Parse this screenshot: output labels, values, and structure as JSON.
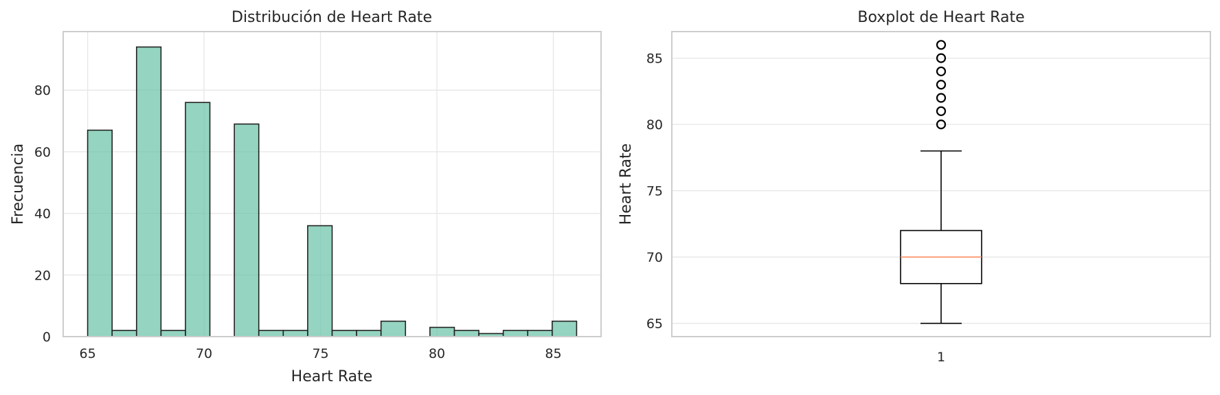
{
  "chart_data": [
    {
      "type": "bar",
      "title": "Distribución de Heart Rate",
      "xlabel": "Heart Rate",
      "ylabel": "Frecuencia",
      "xlim": [
        63.95,
        87.05
      ],
      "ylim": [
        0,
        99
      ],
      "xticks": [
        65,
        70,
        75,
        80,
        85
      ],
      "yticks": [
        0,
        20,
        40,
        60,
        80
      ],
      "grid": true,
      "bar_color": "#66c2a5",
      "edge_color": "#222222",
      "bins": [
        {
          "x0": 65.0,
          "x1": 66.05,
          "count": 67
        },
        {
          "x0": 66.05,
          "x1": 67.1,
          "count": 2
        },
        {
          "x0": 67.1,
          "x1": 68.15,
          "count": 94
        },
        {
          "x0": 68.15,
          "x1": 69.2,
          "count": 2
        },
        {
          "x0": 69.2,
          "x1": 70.25,
          "count": 76
        },
        {
          "x0": 70.25,
          "x1": 71.3,
          "count": 0
        },
        {
          "x0": 71.3,
          "x1": 72.35,
          "count": 69
        },
        {
          "x0": 72.35,
          "x1": 73.4,
          "count": 2
        },
        {
          "x0": 73.4,
          "x1": 74.45,
          "count": 2
        },
        {
          "x0": 74.45,
          "x1": 75.5,
          "count": 36
        },
        {
          "x0": 75.5,
          "x1": 76.55,
          "count": 2
        },
        {
          "x0": 76.55,
          "x1": 77.6,
          "count": 2
        },
        {
          "x0": 77.6,
          "x1": 78.65,
          "count": 5
        },
        {
          "x0": 78.65,
          "x1": 79.7,
          "count": 0
        },
        {
          "x0": 79.7,
          "x1": 80.75,
          "count": 3
        },
        {
          "x0": 80.75,
          "x1": 81.8,
          "count": 2
        },
        {
          "x0": 81.8,
          "x1": 82.85,
          "count": 1
        },
        {
          "x0": 82.85,
          "x1": 83.9,
          "count": 2
        },
        {
          "x0": 83.9,
          "x1": 84.95,
          "count": 2
        },
        {
          "x0": 84.95,
          "x1": 86.0,
          "count": 5
        }
      ]
    },
    {
      "type": "box",
      "title": "Boxplot de Heart Rate",
      "xlabel": "",
      "ylabel": "Heart Rate",
      "ylim": [
        64.0,
        87.0
      ],
      "yticks": [
        65,
        70,
        75,
        80,
        85
      ],
      "xticks": [
        "1"
      ],
      "grid": true,
      "median_color": "#fc8d62",
      "box": {
        "whisker_low": 65,
        "q1": 68,
        "median": 70,
        "q3": 72,
        "whisker_high": 78,
        "outliers": [
          80,
          81,
          82,
          83,
          84,
          85,
          86
        ]
      }
    }
  ]
}
